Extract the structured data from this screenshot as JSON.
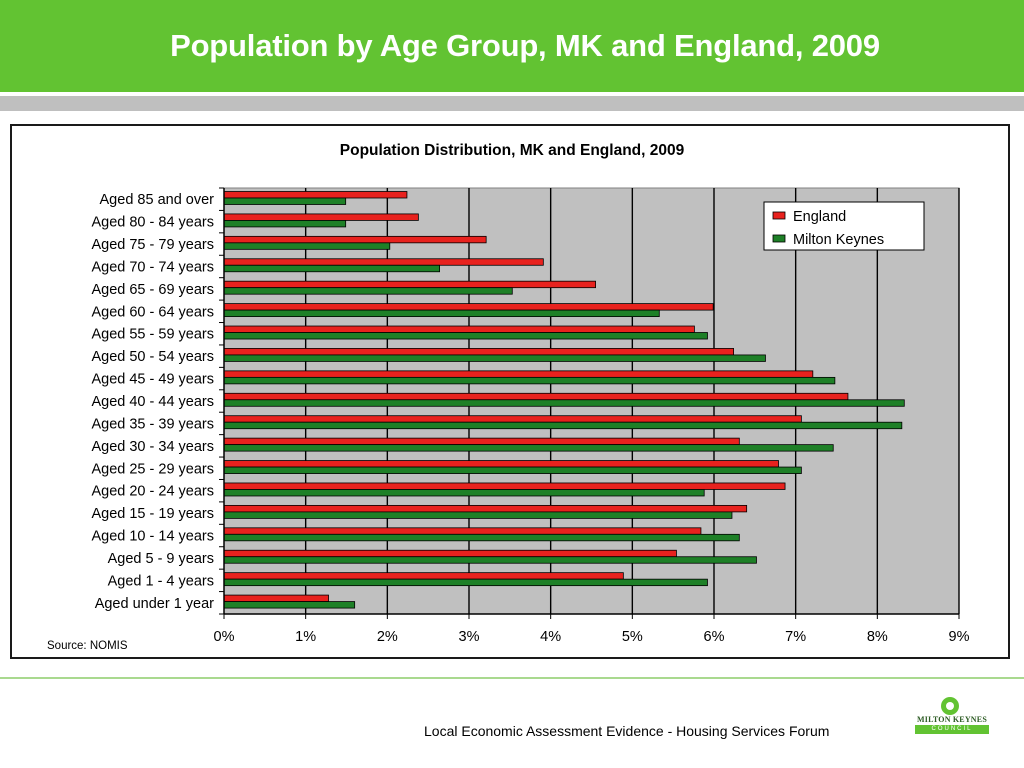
{
  "slide": {
    "title": "Population by Age Group, MK and England, 2009",
    "source_note": "Source: NOMIS",
    "footer_text": "Local Economic Assessment Evidence - Housing Services Forum",
    "logo": {
      "name": "MILTON KEYNES",
      "sub": "COUNCIL"
    }
  },
  "colors": {
    "header": "#62c332",
    "england": "#e8221e",
    "milton_keynes": "#1e8027",
    "plot_bg": "#c0c0c0"
  },
  "chart_data": {
    "type": "bar",
    "orientation": "horizontal",
    "title": "Population Distribution, MK and England, 2009",
    "categories": [
      "Aged 85 and over",
      "Aged 80 - 84 years",
      "Aged 75 - 79 years",
      "Aged 70 - 74 years",
      "Aged 65 - 69 years",
      "Aged 60 - 64 years",
      "Aged 55 - 59 years",
      "Aged 50 - 54 years",
      "Aged 45 - 49 years",
      "Aged 40 - 44 years",
      "Aged 35 - 39 years",
      "Aged 30 - 34 years",
      "Aged 25 - 29 years",
      "Aged 20 - 24 years",
      "Aged 15 - 19 years",
      "Aged 10 - 14 years",
      "Aged 5 - 9 years",
      "Aged 1 - 4 years",
      "Aged under 1 year"
    ],
    "series": [
      {
        "name": "England",
        "color": "#e8221e",
        "values": [
          2.24,
          2.38,
          3.21,
          3.91,
          4.55,
          5.99,
          5.76,
          6.24,
          7.21,
          7.64,
          7.07,
          6.31,
          6.79,
          6.87,
          6.4,
          5.84,
          5.54,
          4.89,
          1.28
        ]
      },
      {
        "name": "Milton Keynes",
        "color": "#1e8027",
        "values": [
          1.49,
          1.49,
          2.03,
          2.64,
          3.53,
          5.33,
          5.92,
          6.63,
          7.48,
          8.33,
          8.3,
          7.46,
          7.07,
          5.88,
          6.22,
          6.31,
          6.52,
          5.92,
          1.6
        ]
      }
    ],
    "xlim": [
      0,
      9
    ],
    "x_ticks": [
      "0%",
      "1%",
      "2%",
      "3%",
      "4%",
      "5%",
      "6%",
      "7%",
      "8%",
      "9%"
    ],
    "value_unit": "%",
    "grid": "vertical major gridlines",
    "legend_position": "top-right"
  }
}
